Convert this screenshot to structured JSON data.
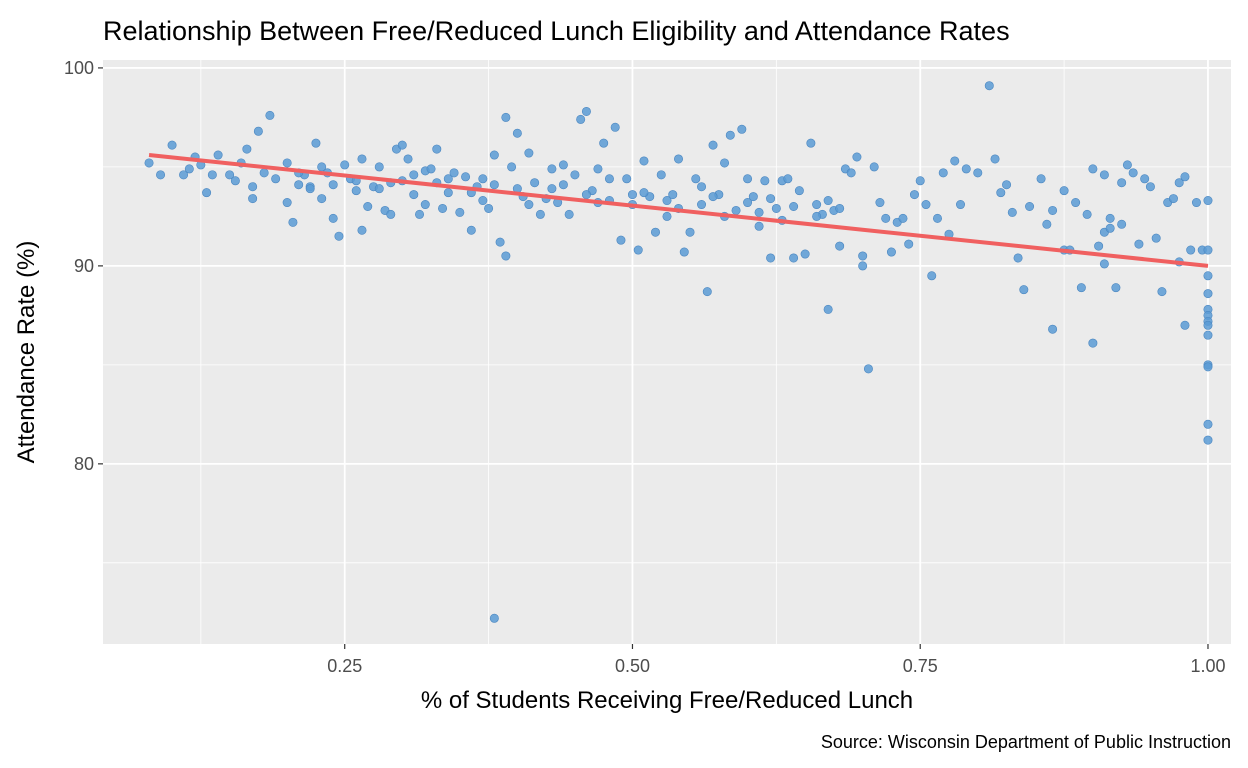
{
  "chart_data": {
    "type": "scatter",
    "title": "Relationship Between Free/Reduced Lunch Eligibility and Attendance Rates",
    "xlabel": "% of Students Receiving Free/Reduced Lunch",
    "ylabel": "Attendance Rate (%)",
    "caption": "Source: Wisconsin Department of Public Instruction",
    "xlim": [
      0.04,
      1.02
    ],
    "ylim": [
      70.9,
      100.4
    ],
    "x_ticks": [
      {
        "value": 0.25,
        "label": "0.25"
      },
      {
        "value": 0.5,
        "label": "0.50"
      },
      {
        "value": 0.75,
        "label": "0.75"
      },
      {
        "value": 1.0,
        "label": "1.00"
      }
    ],
    "y_ticks": [
      {
        "value": 80,
        "label": "80"
      },
      {
        "value": 90,
        "label": "90"
      },
      {
        "value": 100,
        "label": "100"
      }
    ],
    "grid": true,
    "legend": "none",
    "colors": {
      "points": "#5b9bd5",
      "trend": "#f06060",
      "panel": "#ebebeb",
      "grid": "#ffffff"
    },
    "trend_line": {
      "x": [
        0.08,
        1.0
      ],
      "y": [
        95.6,
        90.0
      ]
    },
    "points": [
      [
        0.08,
        95.2
      ],
      [
        0.09,
        94.6
      ],
      [
        0.1,
        96.1
      ],
      [
        0.11,
        94.6
      ],
      [
        0.115,
        94.9
      ],
      [
        0.12,
        95.5
      ],
      [
        0.125,
        95.1
      ],
      [
        0.14,
        95.6
      ],
      [
        0.135,
        94.6
      ],
      [
        0.13,
        93.7
      ],
      [
        0.15,
        94.6
      ],
      [
        0.155,
        94.3
      ],
      [
        0.16,
        95.2
      ],
      [
        0.165,
        95.9
      ],
      [
        0.17,
        94.0
      ],
      [
        0.17,
        93.4
      ],
      [
        0.175,
        96.8
      ],
      [
        0.18,
        94.7
      ],
      [
        0.185,
        97.6
      ],
      [
        0.19,
        94.4
      ],
      [
        0.2,
        95.2
      ],
      [
        0.2,
        93.2
      ],
      [
        0.205,
        92.2
      ],
      [
        0.21,
        94.1
      ],
      [
        0.215,
        94.6
      ],
      [
        0.22,
        94.0
      ],
      [
        0.225,
        96.2
      ],
      [
        0.23,
        95.0
      ],
      [
        0.23,
        93.4
      ],
      [
        0.235,
        94.7
      ],
      [
        0.24,
        92.4
      ],
      [
        0.245,
        91.5
      ],
      [
        0.25,
        95.1
      ],
      [
        0.255,
        94.4
      ],
      [
        0.26,
        93.8
      ],
      [
        0.265,
        95.4
      ],
      [
        0.265,
        91.8
      ],
      [
        0.27,
        93.0
      ],
      [
        0.275,
        94.0
      ],
      [
        0.28,
        95.0
      ],
      [
        0.285,
        92.8
      ],
      [
        0.29,
        92.6
      ],
      [
        0.295,
        95.9
      ],
      [
        0.3,
        94.3
      ],
      [
        0.3,
        96.1
      ],
      [
        0.305,
        95.4
      ],
      [
        0.31,
        93.6
      ],
      [
        0.315,
        92.6
      ],
      [
        0.32,
        94.8
      ],
      [
        0.325,
        94.9
      ],
      [
        0.33,
        95.9
      ],
      [
        0.335,
        92.9
      ],
      [
        0.34,
        93.7
      ],
      [
        0.345,
        94.7
      ],
      [
        0.35,
        92.7
      ],
      [
        0.355,
        94.5
      ],
      [
        0.36,
        91.8
      ],
      [
        0.365,
        94.0
      ],
      [
        0.37,
        94.4
      ],
      [
        0.375,
        92.9
      ],
      [
        0.38,
        95.6
      ],
      [
        0.385,
        91.2
      ],
      [
        0.39,
        90.5
      ],
      [
        0.39,
        97.5
      ],
      [
        0.395,
        95.0
      ],
      [
        0.4,
        96.7
      ],
      [
        0.405,
        93.5
      ],
      [
        0.41,
        95.7
      ],
      [
        0.415,
        94.2
      ],
      [
        0.42,
        92.6
      ],
      [
        0.425,
        93.4
      ],
      [
        0.43,
        94.9
      ],
      [
        0.435,
        93.2
      ],
      [
        0.44,
        95.1
      ],
      [
        0.445,
        92.6
      ],
      [
        0.45,
        94.6
      ],
      [
        0.455,
        97.4
      ],
      [
        0.46,
        97.8
      ],
      [
        0.465,
        93.8
      ],
      [
        0.47,
        94.9
      ],
      [
        0.475,
        96.2
      ],
      [
        0.48,
        93.3
      ],
      [
        0.485,
        97.0
      ],
      [
        0.49,
        91.3
      ],
      [
        0.495,
        94.4
      ],
      [
        0.5,
        93.6
      ],
      [
        0.505,
        90.8
      ],
      [
        0.51,
        95.3
      ],
      [
        0.515,
        93.5
      ],
      [
        0.52,
        91.7
      ],
      [
        0.525,
        94.6
      ],
      [
        0.53,
        92.5
      ],
      [
        0.535,
        93.6
      ],
      [
        0.54,
        95.4
      ],
      [
        0.545,
        90.7
      ],
      [
        0.55,
        91.7
      ],
      [
        0.555,
        94.4
      ],
      [
        0.56,
        94.0
      ],
      [
        0.565,
        88.7
      ],
      [
        0.57,
        96.1
      ],
      [
        0.575,
        93.6
      ],
      [
        0.58,
        95.2
      ],
      [
        0.585,
        96.6
      ],
      [
        0.59,
        92.8
      ],
      [
        0.595,
        96.9
      ],
      [
        0.6,
        94.4
      ],
      [
        0.605,
        93.5
      ],
      [
        0.61,
        92.0
      ],
      [
        0.615,
        94.3
      ],
      [
        0.62,
        90.4
      ],
      [
        0.625,
        92.9
      ],
      [
        0.63,
        94.3
      ],
      [
        0.635,
        94.4
      ],
      [
        0.64,
        90.4
      ],
      [
        0.645,
        93.8
      ],
      [
        0.65,
        90.6
      ],
      [
        0.655,
        96.2
      ],
      [
        0.66,
        93.1
      ],
      [
        0.665,
        92.6
      ],
      [
        0.67,
        87.8
      ],
      [
        0.675,
        92.8
      ],
      [
        0.68,
        91.0
      ],
      [
        0.685,
        94.9
      ],
      [
        0.69,
        94.7
      ],
      [
        0.695,
        95.5
      ],
      [
        0.7,
        90.5
      ],
      [
        0.7,
        90.0
      ],
      [
        0.705,
        84.8
      ],
      [
        0.71,
        95.0
      ],
      [
        0.715,
        93.2
      ],
      [
        0.72,
        92.4
      ],
      [
        0.725,
        90.7
      ],
      [
        0.73,
        92.2
      ],
      [
        0.735,
        92.4
      ],
      [
        0.74,
        91.1
      ],
      [
        0.745,
        93.6
      ],
      [
        0.75,
        94.3
      ],
      [
        0.755,
        93.1
      ],
      [
        0.76,
        89.5
      ],
      [
        0.765,
        92.4
      ],
      [
        0.77,
        94.7
      ],
      [
        0.775,
        91.6
      ],
      [
        0.78,
        95.3
      ],
      [
        0.785,
        93.1
      ],
      [
        0.79,
        94.9
      ],
      [
        0.8,
        94.7
      ],
      [
        0.81,
        99.1
      ],
      [
        0.815,
        95.4
      ],
      [
        0.82,
        93.7
      ],
      [
        0.825,
        94.1
      ],
      [
        0.83,
        92.7
      ],
      [
        0.835,
        90.4
      ],
      [
        0.84,
        88.8
      ],
      [
        0.845,
        93.0
      ],
      [
        0.855,
        94.4
      ],
      [
        0.865,
        92.8
      ],
      [
        0.875,
        93.8
      ],
      [
        0.885,
        93.2
      ],
      [
        0.895,
        92.6
      ],
      [
        0.9,
        94.9
      ],
      [
        0.91,
        94.6
      ],
      [
        0.91,
        90.1
      ],
      [
        0.915,
        92.4
      ],
      [
        0.92,
        88.9
      ],
      [
        0.925,
        92.1
      ],
      [
        0.93,
        95.1
      ],
      [
        0.935,
        94.7
      ],
      [
        0.94,
        91.1
      ],
      [
        0.945,
        94.4
      ],
      [
        0.95,
        94.0
      ],
      [
        0.955,
        91.4
      ],
      [
        0.96,
        88.7
      ],
      [
        0.965,
        93.2
      ],
      [
        0.97,
        93.4
      ],
      [
        0.975,
        94.2
      ],
      [
        0.975,
        90.2
      ],
      [
        0.98,
        94.5
      ],
      [
        0.98,
        87.0
      ],
      [
        0.985,
        90.8
      ],
      [
        0.99,
        93.2
      ],
      [
        0.995,
        90.8
      ],
      [
        0.86,
        92.1
      ],
      [
        0.865,
        86.8
      ],
      [
        0.875,
        90.8
      ],
      [
        0.88,
        90.8
      ],
      [
        0.89,
        88.9
      ],
      [
        0.9,
        86.1
      ],
      [
        0.905,
        91.0
      ],
      [
        0.91,
        91.7
      ],
      [
        0.915,
        91.9
      ],
      [
        0.925,
        94.2
      ],
      [
        1.0,
        93.3
      ],
      [
        1.0,
        90.8
      ],
      [
        1.0,
        89.5
      ],
      [
        1.0,
        88.6
      ],
      [
        1.0,
        87.8
      ],
      [
        1.0,
        87.5
      ],
      [
        1.0,
        87.2
      ],
      [
        1.0,
        87.0
      ],
      [
        1.0,
        86.5
      ],
      [
        1.0,
        85.0
      ],
      [
        1.0,
        84.9
      ],
      [
        1.0,
        82.0
      ],
      [
        1.0,
        81.2
      ],
      [
        0.38,
        72.2
      ],
      [
        0.21,
        94.7
      ],
      [
        0.22,
        93.9
      ],
      [
        0.24,
        94.1
      ],
      [
        0.26,
        94.3
      ],
      [
        0.28,
        93.9
      ],
      [
        0.29,
        94.2
      ],
      [
        0.31,
        94.6
      ],
      [
        0.32,
        93.1
      ],
      [
        0.33,
        94.2
      ],
      [
        0.34,
        94.4
      ],
      [
        0.36,
        93.7
      ],
      [
        0.37,
        93.3
      ],
      [
        0.38,
        94.1
      ],
      [
        0.4,
        93.9
      ],
      [
        0.41,
        93.1
      ],
      [
        0.43,
        93.9
      ],
      [
        0.44,
        94.1
      ],
      [
        0.46,
        93.6
      ],
      [
        0.47,
        93.2
      ],
      [
        0.48,
        94.4
      ],
      [
        0.5,
        93.1
      ],
      [
        0.51,
        93.7
      ],
      [
        0.53,
        93.3
      ],
      [
        0.54,
        92.9
      ],
      [
        0.56,
        93.1
      ],
      [
        0.57,
        93.5
      ],
      [
        0.58,
        92.5
      ],
      [
        0.6,
        93.2
      ],
      [
        0.61,
        92.7
      ],
      [
        0.62,
        93.4
      ],
      [
        0.63,
        92.3
      ],
      [
        0.64,
        93.0
      ],
      [
        0.66,
        92.5
      ],
      [
        0.67,
        93.3
      ],
      [
        0.68,
        92.9
      ]
    ]
  }
}
